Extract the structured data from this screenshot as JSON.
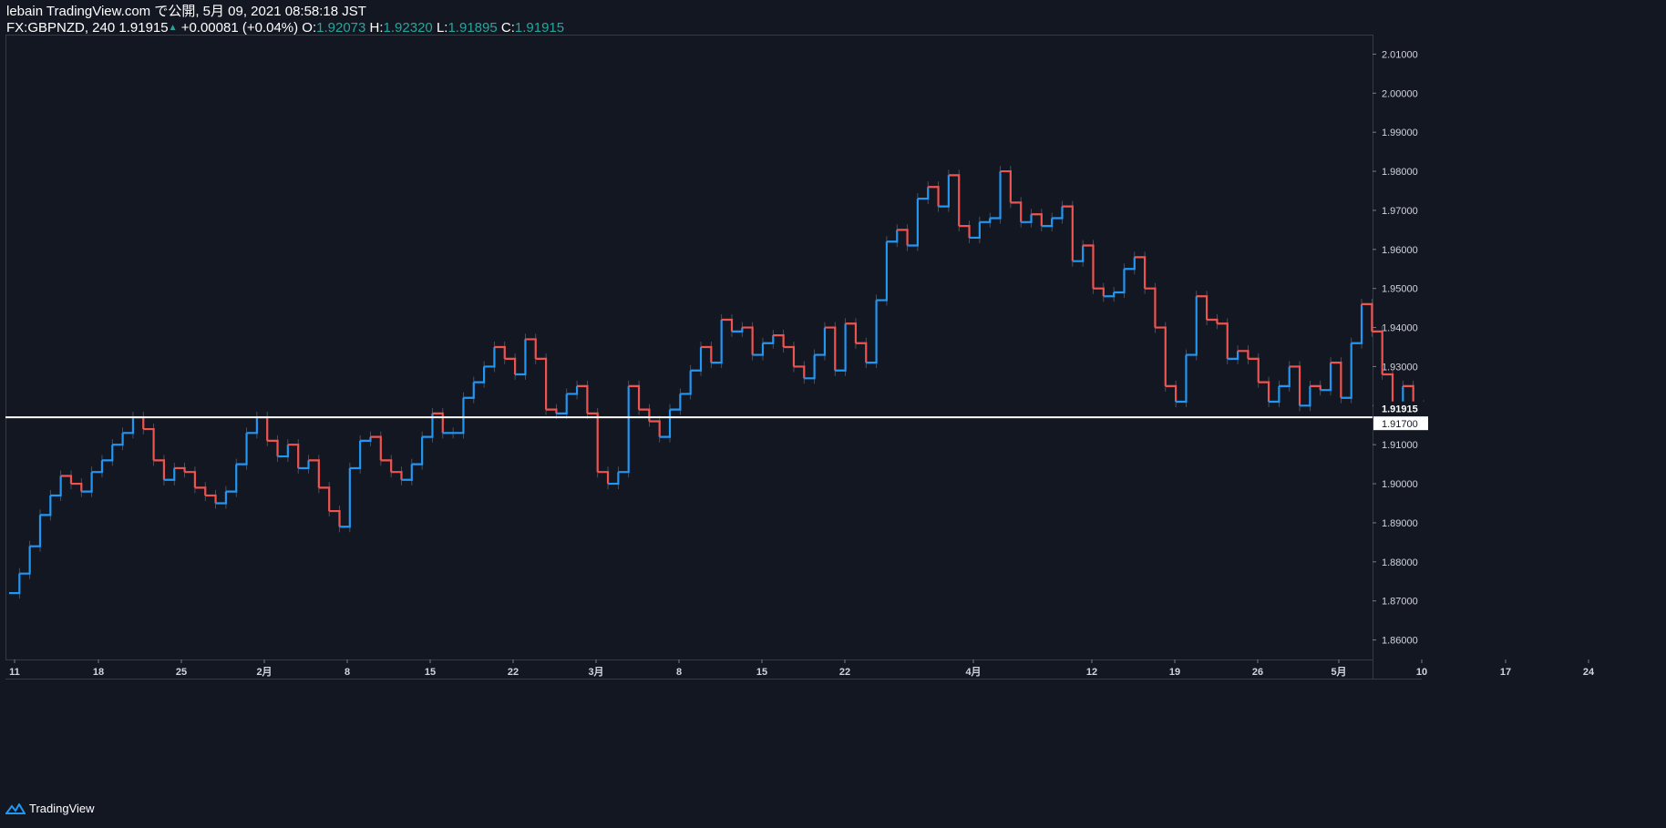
{
  "header": {
    "line1": "lebain TradingView.com で公開, 5月 09, 2021 08:58:18 JST",
    "symbol": "FX:GBPNZD, 240",
    "last": "1.91915",
    "change": "+0.00081 (+0.04%)",
    "o_label": "O:",
    "o_value": "1.92073",
    "h_label": "H:",
    "h_value": "1.92320",
    "l_label": "L:",
    "l_value": "1.91895",
    "c_label": "C:",
    "c_value": "1.91915"
  },
  "brand": "TradingView",
  "colors": {
    "background": "#131722",
    "up": "#2196f3",
    "down": "#ef5350",
    "ohlc_text": "#26a69a",
    "horizontal_line": "#ffffff",
    "grid_border": "#363a45"
  },
  "chart_data": {
    "type": "line",
    "instrument": "FX:GBPNZD",
    "interval": "240",
    "y_range": [
      1.855,
      2.015
    ],
    "y_ticks": [
      "2.01000",
      "2.00000",
      "1.99000",
      "1.98000",
      "1.97000",
      "1.96000",
      "1.95000",
      "1.94000",
      "1.93000",
      "1.92000",
      "1.91000",
      "1.90000",
      "1.89000",
      "1.88000",
      "1.87000",
      "1.86000"
    ],
    "x_ticks": [
      "11",
      "18",
      "25",
      "2月",
      "8",
      "15",
      "22",
      "3月",
      "8",
      "15",
      "22",
      "4月",
      "12",
      "19",
      "26",
      "5月",
      "10",
      "17",
      "24"
    ],
    "price_labels": {
      "last": "1.91915",
      "horizontal_line": "1.91700"
    },
    "horizontal_line_value": 1.917,
    "close_series": [
      1.872,
      1.877,
      1.884,
      1.892,
      1.897,
      1.902,
      1.9,
      1.898,
      1.903,
      1.906,
      1.91,
      1.913,
      1.917,
      1.914,
      1.906,
      1.901,
      1.904,
      1.903,
      1.899,
      1.897,
      1.895,
      1.898,
      1.905,
      1.913,
      1.917,
      1.911,
      1.907,
      1.91,
      1.904,
      1.906,
      1.899,
      1.893,
      1.889,
      1.904,
      1.911,
      1.912,
      1.906,
      1.903,
      1.901,
      1.905,
      1.912,
      1.918,
      1.913,
      1.913,
      1.922,
      1.926,
      1.93,
      1.935,
      1.932,
      1.928,
      1.937,
      1.932,
      1.919,
      1.918,
      1.923,
      1.925,
      1.918,
      1.903,
      1.9,
      1.903,
      1.925,
      1.919,
      1.916,
      1.912,
      1.919,
      1.923,
      1.929,
      1.935,
      1.931,
      1.942,
      1.939,
      1.94,
      1.933,
      1.936,
      1.938,
      1.935,
      1.93,
      1.927,
      1.933,
      1.94,
      1.929,
      1.941,
      1.936,
      1.931,
      1.947,
      1.962,
      1.965,
      1.961,
      1.973,
      1.976,
      1.971,
      1.979,
      1.966,
      1.963,
      1.967,
      1.968,
      1.98,
      1.972,
      1.967,
      1.969,
      1.966,
      1.968,
      1.971,
      1.957,
      1.961,
      1.95,
      1.948,
      1.949,
      1.955,
      1.958,
      1.95,
      1.94,
      1.925,
      1.921,
      1.933,
      1.948,
      1.942,
      1.941,
      1.932,
      1.934,
      1.932,
      1.926,
      1.921,
      1.925,
      1.93,
      1.92,
      1.925,
      1.924,
      1.931,
      1.922,
      1.936,
      1.946,
      1.939,
      1.928,
      1.92,
      1.925,
      1.92,
      1.9192
    ]
  }
}
